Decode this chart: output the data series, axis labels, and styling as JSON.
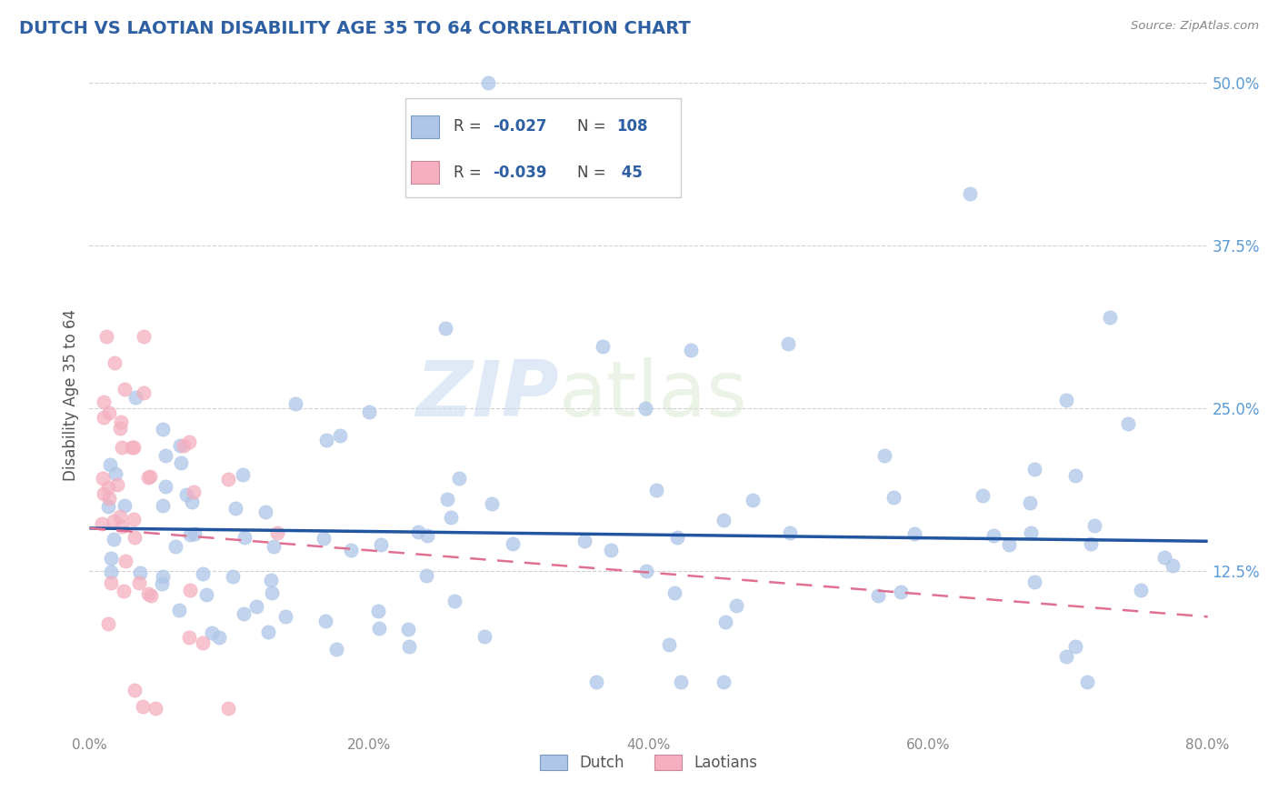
{
  "title": "DUTCH VS LAOTIAN DISABILITY AGE 35 TO 64 CORRELATION CHART",
  "source_text": "Source: ZipAtlas.com",
  "ylabel": "Disability Age 35 to 64",
  "xlim": [
    0.0,
    0.8
  ],
  "ylim": [
    0.0,
    0.52
  ],
  "xtick_labels": [
    "0.0%",
    "",
    "20.0%",
    "",
    "40.0%",
    "",
    "60.0%",
    "",
    "80.0%"
  ],
  "xtick_vals": [
    0.0,
    0.1,
    0.2,
    0.3,
    0.4,
    0.5,
    0.6,
    0.7,
    0.8
  ],
  "ytick_labels": [
    "12.5%",
    "25.0%",
    "37.5%",
    "50.0%"
  ],
  "ytick_vals": [
    0.125,
    0.25,
    0.375,
    0.5
  ],
  "watermark_zip": "ZIP",
  "watermark_atlas": "atlas",
  "legend_r1": "R = -0.027",
  "legend_n1": "N = 108",
  "legend_r2": "R = -0.039",
  "legend_n2": "N =  45",
  "dutch_color": "#aec6e8",
  "laotian_color": "#f4afc0",
  "dutch_line_color": "#2155a0",
  "laotian_line_color": "#e07090",
  "title_color": "#2e5fa3",
  "legend_text_color": "#2e5fa3",
  "axis_label_color": "#555555",
  "ytick_color": "#5b9bd5",
  "xtick_color": "#888888",
  "grid_color": "#d0d0d0",
  "dutch_line_start_y": 0.158,
  "dutch_line_end_y": 0.148,
  "laotian_line_start_y": 0.158,
  "laotian_line_end_y": 0.09,
  "background_color": "#ffffff"
}
